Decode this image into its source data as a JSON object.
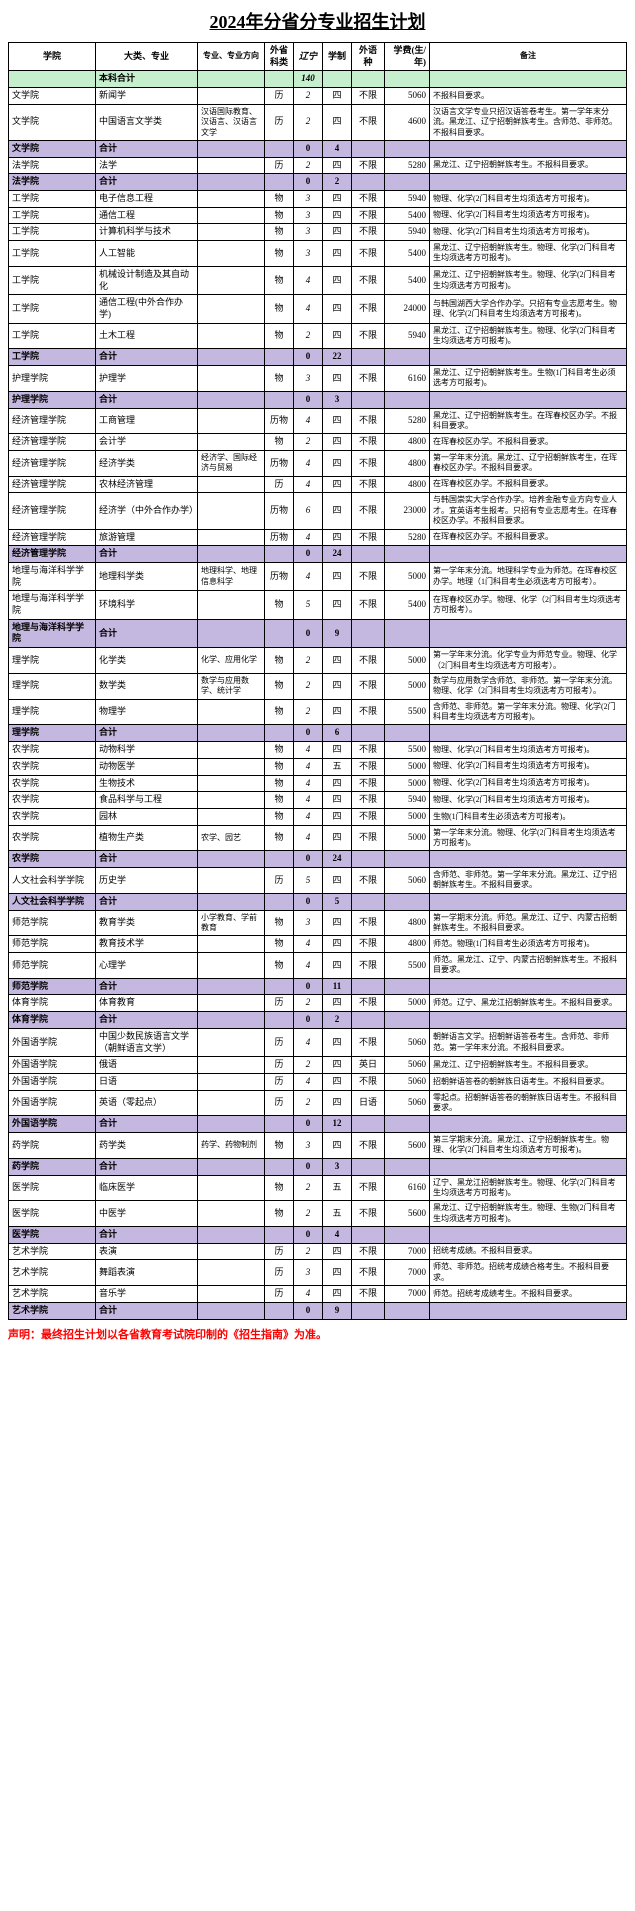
{
  "title": "2024年分省分专业招生计划",
  "headers": {
    "college": "学院",
    "major": "大类、专业",
    "direction": "专业、专业方向",
    "subject": "外省科类",
    "liaoning": "辽宁",
    "system": "学制",
    "lang": "外语种",
    "fee": "学费(生/年)",
    "note": "备注"
  },
  "rows": [
    {
      "type": "green",
      "c": "",
      "m": "本科合计",
      "d": "",
      "s": "",
      "l": "140",
      "sy": "",
      "lg": "",
      "f": "",
      "n": ""
    },
    {
      "type": "",
      "c": "文学院",
      "m": "新闻学",
      "d": "",
      "s": "历",
      "l": "2",
      "sy": "四",
      "lg": "不限",
      "f": "5060",
      "n": "不报科目要求。"
    },
    {
      "type": "",
      "c": "文学院",
      "m": "中国语言文学类",
      "d": "汉语国际教育、汉语言、汉语言文学",
      "s": "历",
      "l": "2",
      "sy": "四",
      "lg": "不限",
      "f": "4600",
      "n": "汉语言文学专业只招汉语答卷考生。第一学年末分流。黑龙江、辽宁招朝鲜族考生。含师范、非师范。不报科目要求。"
    },
    {
      "type": "purple",
      "c": "文学院",
      "m": "合计",
      "d": "",
      "s": "",
      "l": "0",
      "l2": "4",
      "sy": "",
      "lg": "",
      "f": "",
      "n": ""
    },
    {
      "type": "",
      "c": "法学院",
      "m": "法学",
      "d": "",
      "s": "历",
      "l": "2",
      "sy": "四",
      "lg": "不限",
      "f": "5280",
      "n": "黑龙江、辽宁招朝鲜族考生。不报科目要求。"
    },
    {
      "type": "purple",
      "c": "法学院",
      "m": "合计",
      "d": "",
      "s": "",
      "l": "0",
      "l2": "2",
      "sy": "",
      "lg": "",
      "f": "",
      "n": ""
    },
    {
      "type": "",
      "c": "工学院",
      "m": "电子信息工程",
      "d": "",
      "s": "物",
      "l": "3",
      "sy": "四",
      "lg": "不限",
      "f": "5940",
      "n": "物理、化学(2门科目考生均须选考方可报考)。"
    },
    {
      "type": "",
      "c": "工学院",
      "m": "通信工程",
      "d": "",
      "s": "物",
      "l": "3",
      "sy": "四",
      "lg": "不限",
      "f": "5400",
      "n": "物理、化学(2门科目考生均须选考方可报考)。"
    },
    {
      "type": "",
      "c": "工学院",
      "m": "计算机科学与技术",
      "d": "",
      "s": "物",
      "l": "3",
      "sy": "四",
      "lg": "不限",
      "f": "5940",
      "n": "物理、化学(2门科目考生均须选考方可报考)。"
    },
    {
      "type": "",
      "c": "工学院",
      "m": "人工智能",
      "d": "",
      "s": "物",
      "l": "3",
      "sy": "四",
      "lg": "不限",
      "f": "5400",
      "n": "黑龙江、辽宁招朝鲜族考生。物理、化学(2门科目考生均须选考方可报考)。"
    },
    {
      "type": "",
      "c": "工学院",
      "m": "机械设计制造及其自动化",
      "d": "",
      "s": "物",
      "l": "4",
      "sy": "四",
      "lg": "不限",
      "f": "5400",
      "n": "黑龙江、辽宁招朝鲜族考生。物理、化学(2门科目考生均须选考方可报考)。"
    },
    {
      "type": "",
      "c": "工学院",
      "m": "通信工程(中外合作办学)",
      "d": "",
      "s": "物",
      "l": "4",
      "sy": "四",
      "lg": "不限",
      "f": "24000",
      "n": "与韩国湖西大学合作办学。只招有专业志愿考生。物理、化学(2门科目考生均须选考方可报考)。"
    },
    {
      "type": "",
      "c": "工学院",
      "m": "土木工程",
      "d": "",
      "s": "物",
      "l": "2",
      "sy": "四",
      "lg": "不限",
      "f": "5940",
      "n": "黑龙江、辽宁招朝鲜族考生。物理、化学(2门科目考生均须选考方可报考)。"
    },
    {
      "type": "purple",
      "c": "工学院",
      "m": "合计",
      "d": "",
      "s": "",
      "l": "0",
      "l2": "22",
      "sy": "",
      "lg": "",
      "f": "",
      "n": ""
    },
    {
      "type": "",
      "c": "护理学院",
      "m": "护理学",
      "d": "",
      "s": "物",
      "l": "3",
      "sy": "四",
      "lg": "不限",
      "f": "6160",
      "n": "黑龙江、辽宁招朝鲜族考生。生物(1门科目考生必须选考方可报考)。"
    },
    {
      "type": "purple",
      "c": "护理学院",
      "m": "合计",
      "d": "",
      "s": "",
      "l": "0",
      "l2": "3",
      "sy": "",
      "lg": "",
      "f": "",
      "n": ""
    },
    {
      "type": "",
      "c": "经济管理学院",
      "m": "工商管理",
      "d": "",
      "s": "历物",
      "l": "4",
      "sy": "四",
      "lg": "不限",
      "f": "5280",
      "n": "黑龙江、辽宁招朝鲜族考生。在珲春校区办学。不报科目要求。"
    },
    {
      "type": "",
      "c": "经济管理学院",
      "m": "会计学",
      "d": "",
      "s": "物",
      "l": "2",
      "sy": "四",
      "lg": "不限",
      "f": "4800",
      "n": "在珲春校区办学。不报科目要求。"
    },
    {
      "type": "",
      "c": "经济管理学院",
      "m": "经济学类",
      "d": "经济学、国际经济与贸易",
      "s": "历物",
      "l": "4",
      "sy": "四",
      "lg": "不限",
      "f": "4800",
      "n": "第一学年末分流。黑龙江、辽宁招朝鲜族考生，在珲春校区办学。不报科目要求。"
    },
    {
      "type": "",
      "c": "经济管理学院",
      "m": "农林经济管理",
      "d": "",
      "s": "历",
      "l": "4",
      "sy": "四",
      "lg": "不限",
      "f": "4800",
      "n": "在珲春校区办学。不报科目要求。"
    },
    {
      "type": "",
      "c": "经济管理学院",
      "m": "经济学（中外合作办学）",
      "d": "",
      "s": "历物",
      "l": "6",
      "sy": "四",
      "lg": "不限",
      "f": "23000",
      "n": "与韩国崇实大学合作办学。培养金融专业方向专业人才。宜英语考生报考。只招有专业志愿考生。在珲春校区办学。不报科目要求。"
    },
    {
      "type": "",
      "c": "经济管理学院",
      "m": "旅游管理",
      "d": "",
      "s": "历物",
      "l": "4",
      "sy": "四",
      "lg": "不限",
      "f": "5280",
      "n": "在珲春校区办学。不报科目要求。"
    },
    {
      "type": "purple",
      "c": "经济管理学院",
      "m": "合计",
      "d": "",
      "s": "",
      "l": "0",
      "l2": "24",
      "sy": "",
      "lg": "",
      "f": "",
      "n": ""
    },
    {
      "type": "",
      "c": "地理与海洋科学学院",
      "m": "地理科学类",
      "d": "地理科学、地理信息科学",
      "s": "历物",
      "l": "4",
      "sy": "四",
      "lg": "不限",
      "f": "5000",
      "n": "第一学年末分流。地理科学专业为师范。在珲春校区办学。地理（1门科目考生必须选考方可报考）。"
    },
    {
      "type": "",
      "c": "地理与海洋科学学院",
      "m": "环境科学",
      "d": "",
      "s": "物",
      "l": "5",
      "sy": "四",
      "lg": "不限",
      "f": "5400",
      "n": "在珲春校区办学。物理、化学（2门科目考生均须选考方可报考）。"
    },
    {
      "type": "purple",
      "c": "地理与海洋科学学院",
      "m": "合计",
      "d": "",
      "s": "",
      "l": "0",
      "l2": "9",
      "sy": "",
      "lg": "",
      "f": "",
      "n": ""
    },
    {
      "type": "",
      "c": "理学院",
      "m": "化学类",
      "d": "化学、应用化学",
      "s": "物",
      "l": "2",
      "sy": "四",
      "lg": "不限",
      "f": "5000",
      "n": "第一学年末分流。化学专业为师范专业。物理、化学（2门科目考生均须选考方可报考）。"
    },
    {
      "type": "",
      "c": "理学院",
      "m": "数学类",
      "d": "数学与应用数学、统计学",
      "s": "物",
      "l": "2",
      "sy": "四",
      "lg": "不限",
      "f": "5000",
      "n": "数学与应用数学含师范、非师范。第一学年末分流。物理、化学（2门科目考生均须选考方可报考）。"
    },
    {
      "type": "",
      "c": "理学院",
      "m": "物理学",
      "d": "",
      "s": "物",
      "l": "2",
      "sy": "四",
      "lg": "不限",
      "f": "5500",
      "n": "含师范、非师范。第一学年末分流。物理、化学(2门科目考生均须选考方可报考)。"
    },
    {
      "type": "purple",
      "c": "理学院",
      "m": "合计",
      "d": "",
      "s": "",
      "l": "0",
      "l2": "6",
      "sy": "",
      "lg": "",
      "f": "",
      "n": ""
    },
    {
      "type": "",
      "c": "农学院",
      "m": "动物科学",
      "d": "",
      "s": "物",
      "l": "4",
      "sy": "四",
      "lg": "不限",
      "f": "5500",
      "n": "物理、化学(2门科目考生均须选考方可报考)。"
    },
    {
      "type": "",
      "c": "农学院",
      "m": "动物医学",
      "d": "",
      "s": "物",
      "l": "4",
      "sy": "五",
      "lg": "不限",
      "f": "5000",
      "n": "物理、化学(2门科目考生均须选考方可报考)。"
    },
    {
      "type": "",
      "c": "农学院",
      "m": "生物技术",
      "d": "",
      "s": "物",
      "l": "4",
      "sy": "四",
      "lg": "不限",
      "f": "5000",
      "n": "物理、化学(2门科目考生均须选考方可报考)。"
    },
    {
      "type": "",
      "c": "农学院",
      "m": "食品科学与工程",
      "d": "",
      "s": "物",
      "l": "4",
      "sy": "四",
      "lg": "不限",
      "f": "5940",
      "n": "物理、化学(2门科目考生均须选考方可报考)。"
    },
    {
      "type": "",
      "c": "农学院",
      "m": "园林",
      "d": "",
      "s": "物",
      "l": "4",
      "sy": "四",
      "lg": "不限",
      "f": "5000",
      "n": "生物(1门科目考生必须选考方可报考)。"
    },
    {
      "type": "",
      "c": "农学院",
      "m": "植物生产类",
      "d": "农学、园艺",
      "s": "物",
      "l": "4",
      "sy": "四",
      "lg": "不限",
      "f": "5000",
      "n": "第一学年末分流。物理、化学(2门科目考生均须选考方可报考)。"
    },
    {
      "type": "purple",
      "c": "农学院",
      "m": "合计",
      "d": "",
      "s": "",
      "l": "0",
      "l2": "24",
      "sy": "",
      "lg": "",
      "f": "",
      "n": ""
    },
    {
      "type": "",
      "c": "人文社会科学学院",
      "m": "历史学",
      "d": "",
      "s": "历",
      "l": "5",
      "sy": "四",
      "lg": "不限",
      "f": "5060",
      "n": "含师范、非师范。第一学年末分流。黑龙江、辽宁招朝鲜族考生。不报科目要求。"
    },
    {
      "type": "purple",
      "c": "人文社会科学学院",
      "m": "合计",
      "d": "",
      "s": "",
      "l": "0",
      "l2": "5",
      "sy": "",
      "lg": "",
      "f": "",
      "n": ""
    },
    {
      "type": "",
      "c": "师范学院",
      "m": "教育学类",
      "d": "小学教育、学前教育",
      "s": "物",
      "l": "3",
      "sy": "四",
      "lg": "不限",
      "f": "4800",
      "n": "第一学期末分流。师范。黑龙江、辽宁、内蒙古招朝鲜族考生。不报科目要求。"
    },
    {
      "type": "",
      "c": "师范学院",
      "m": "教育技术学",
      "d": "",
      "s": "物",
      "l": "4",
      "sy": "四",
      "lg": "不限",
      "f": "4800",
      "n": "师范。物理(1门科目考生必须选考方可报考)。"
    },
    {
      "type": "",
      "c": "师范学院",
      "m": "心理学",
      "d": "",
      "s": "物",
      "l": "4",
      "sy": "四",
      "lg": "不限",
      "f": "5500",
      "n": "师范。黑龙江、辽宁、内蒙古招朝鲜族考生。不报科目要求。"
    },
    {
      "type": "purple",
      "c": "师范学院",
      "m": "合计",
      "d": "",
      "s": "",
      "l": "0",
      "l2": "11",
      "sy": "",
      "lg": "",
      "f": "",
      "n": ""
    },
    {
      "type": "",
      "c": "体育学院",
      "m": "体育教育",
      "d": "",
      "s": "历",
      "l": "2",
      "sy": "四",
      "lg": "不限",
      "f": "5000",
      "n": "师范。辽宁、黑龙江招朝鲜族考生。不报科目要求。"
    },
    {
      "type": "purple",
      "c": "体育学院",
      "m": "合计",
      "d": "",
      "s": "",
      "l": "0",
      "l2": "2",
      "sy": "",
      "lg": "",
      "f": "",
      "n": ""
    },
    {
      "type": "",
      "c": "外国语学院",
      "m": "中国少数民族语言文学（朝鲜语言文学）",
      "d": "",
      "s": "历",
      "l": "4",
      "sy": "四",
      "lg": "不限",
      "f": "5060",
      "n": "朝鲜语言文学。招朝鲜语答卷考生。含师范、非师范。第一学年末分流。不报科目要求。"
    },
    {
      "type": "",
      "c": "外国语学院",
      "m": "俄语",
      "d": "",
      "s": "历",
      "l": "2",
      "sy": "四",
      "lg": "英日",
      "f": "5060",
      "n": "黑龙江、辽宁招朝鲜族考生。不报科目要求。"
    },
    {
      "type": "",
      "c": "外国语学院",
      "m": "日语",
      "d": "",
      "s": "历",
      "l": "4",
      "sy": "四",
      "lg": "不限",
      "f": "5060",
      "n": "招朝鲜语答卷的朝鲜族日语考生。不报科目要求。"
    },
    {
      "type": "",
      "c": "外国语学院",
      "m": "英语（零起点）",
      "d": "",
      "s": "历",
      "l": "2",
      "sy": "四",
      "lg": "日语",
      "f": "5060",
      "n": "零起点。招朝鲜语答卷的朝鲜族日语考生。不报科目要求。"
    },
    {
      "type": "purple",
      "c": "外国语学院",
      "m": "合计",
      "d": "",
      "s": "",
      "l": "0",
      "l2": "12",
      "sy": "",
      "lg": "",
      "f": "",
      "n": ""
    },
    {
      "type": "",
      "c": "药学院",
      "m": "药学类",
      "d": "药学、药物制剂",
      "s": "物",
      "l": "3",
      "sy": "四",
      "lg": "不限",
      "f": "5600",
      "n": "第三学期末分流。黑龙江、辽宁招朝鲜族考生。物理、化学(2门科目考生均须选考方可报考)。"
    },
    {
      "type": "purple",
      "c": "药学院",
      "m": "合计",
      "d": "",
      "s": "",
      "l": "0",
      "l2": "3",
      "sy": "",
      "lg": "",
      "f": "",
      "n": ""
    },
    {
      "type": "",
      "c": "医学院",
      "m": "临床医学",
      "d": "",
      "s": "物",
      "l": "2",
      "sy": "五",
      "lg": "不限",
      "f": "6160",
      "n": "辽宁、黑龙江招朝鲜族考生。物理、化学(2门科目考生均须选考方可报考)。"
    },
    {
      "type": "",
      "c": "医学院",
      "m": "中医学",
      "d": "",
      "s": "物",
      "l": "2",
      "sy": "五",
      "lg": "不限",
      "f": "5600",
      "n": "黑龙江、辽宁招朝鲜族考生。物理、生物(2门科目考生均须选考方可报考)。"
    },
    {
      "type": "purple",
      "c": "医学院",
      "m": "合计",
      "d": "",
      "s": "",
      "l": "0",
      "l2": "4",
      "sy": "",
      "lg": "",
      "f": "",
      "n": ""
    },
    {
      "type": "",
      "c": "艺术学院",
      "m": "表演",
      "d": "",
      "s": "历",
      "l": "2",
      "sy": "四",
      "lg": "不限",
      "f": "7000",
      "n": "招统考成绩。不报科目要求。"
    },
    {
      "type": "",
      "c": "艺术学院",
      "m": "舞蹈表演",
      "d": "",
      "s": "历",
      "l": "3",
      "sy": "四",
      "lg": "不限",
      "f": "7000",
      "n": "师范、非师范。招统考成绩合格考生。不报科目要求。"
    },
    {
      "type": "",
      "c": "艺术学院",
      "m": "音乐学",
      "d": "",
      "s": "历",
      "l": "4",
      "sy": "四",
      "lg": "不限",
      "f": "7000",
      "n": "师范。招统考成绩考生。不报科目要求。"
    },
    {
      "type": "purple",
      "c": "艺术学院",
      "m": "合计",
      "d": "",
      "s": "",
      "l": "0",
      "l2": "9",
      "sy": "",
      "lg": "",
      "f": "",
      "n": ""
    }
  ],
  "footer": "声明：最终招生计划以各省教育考试院印制的《招生指南》为准。"
}
